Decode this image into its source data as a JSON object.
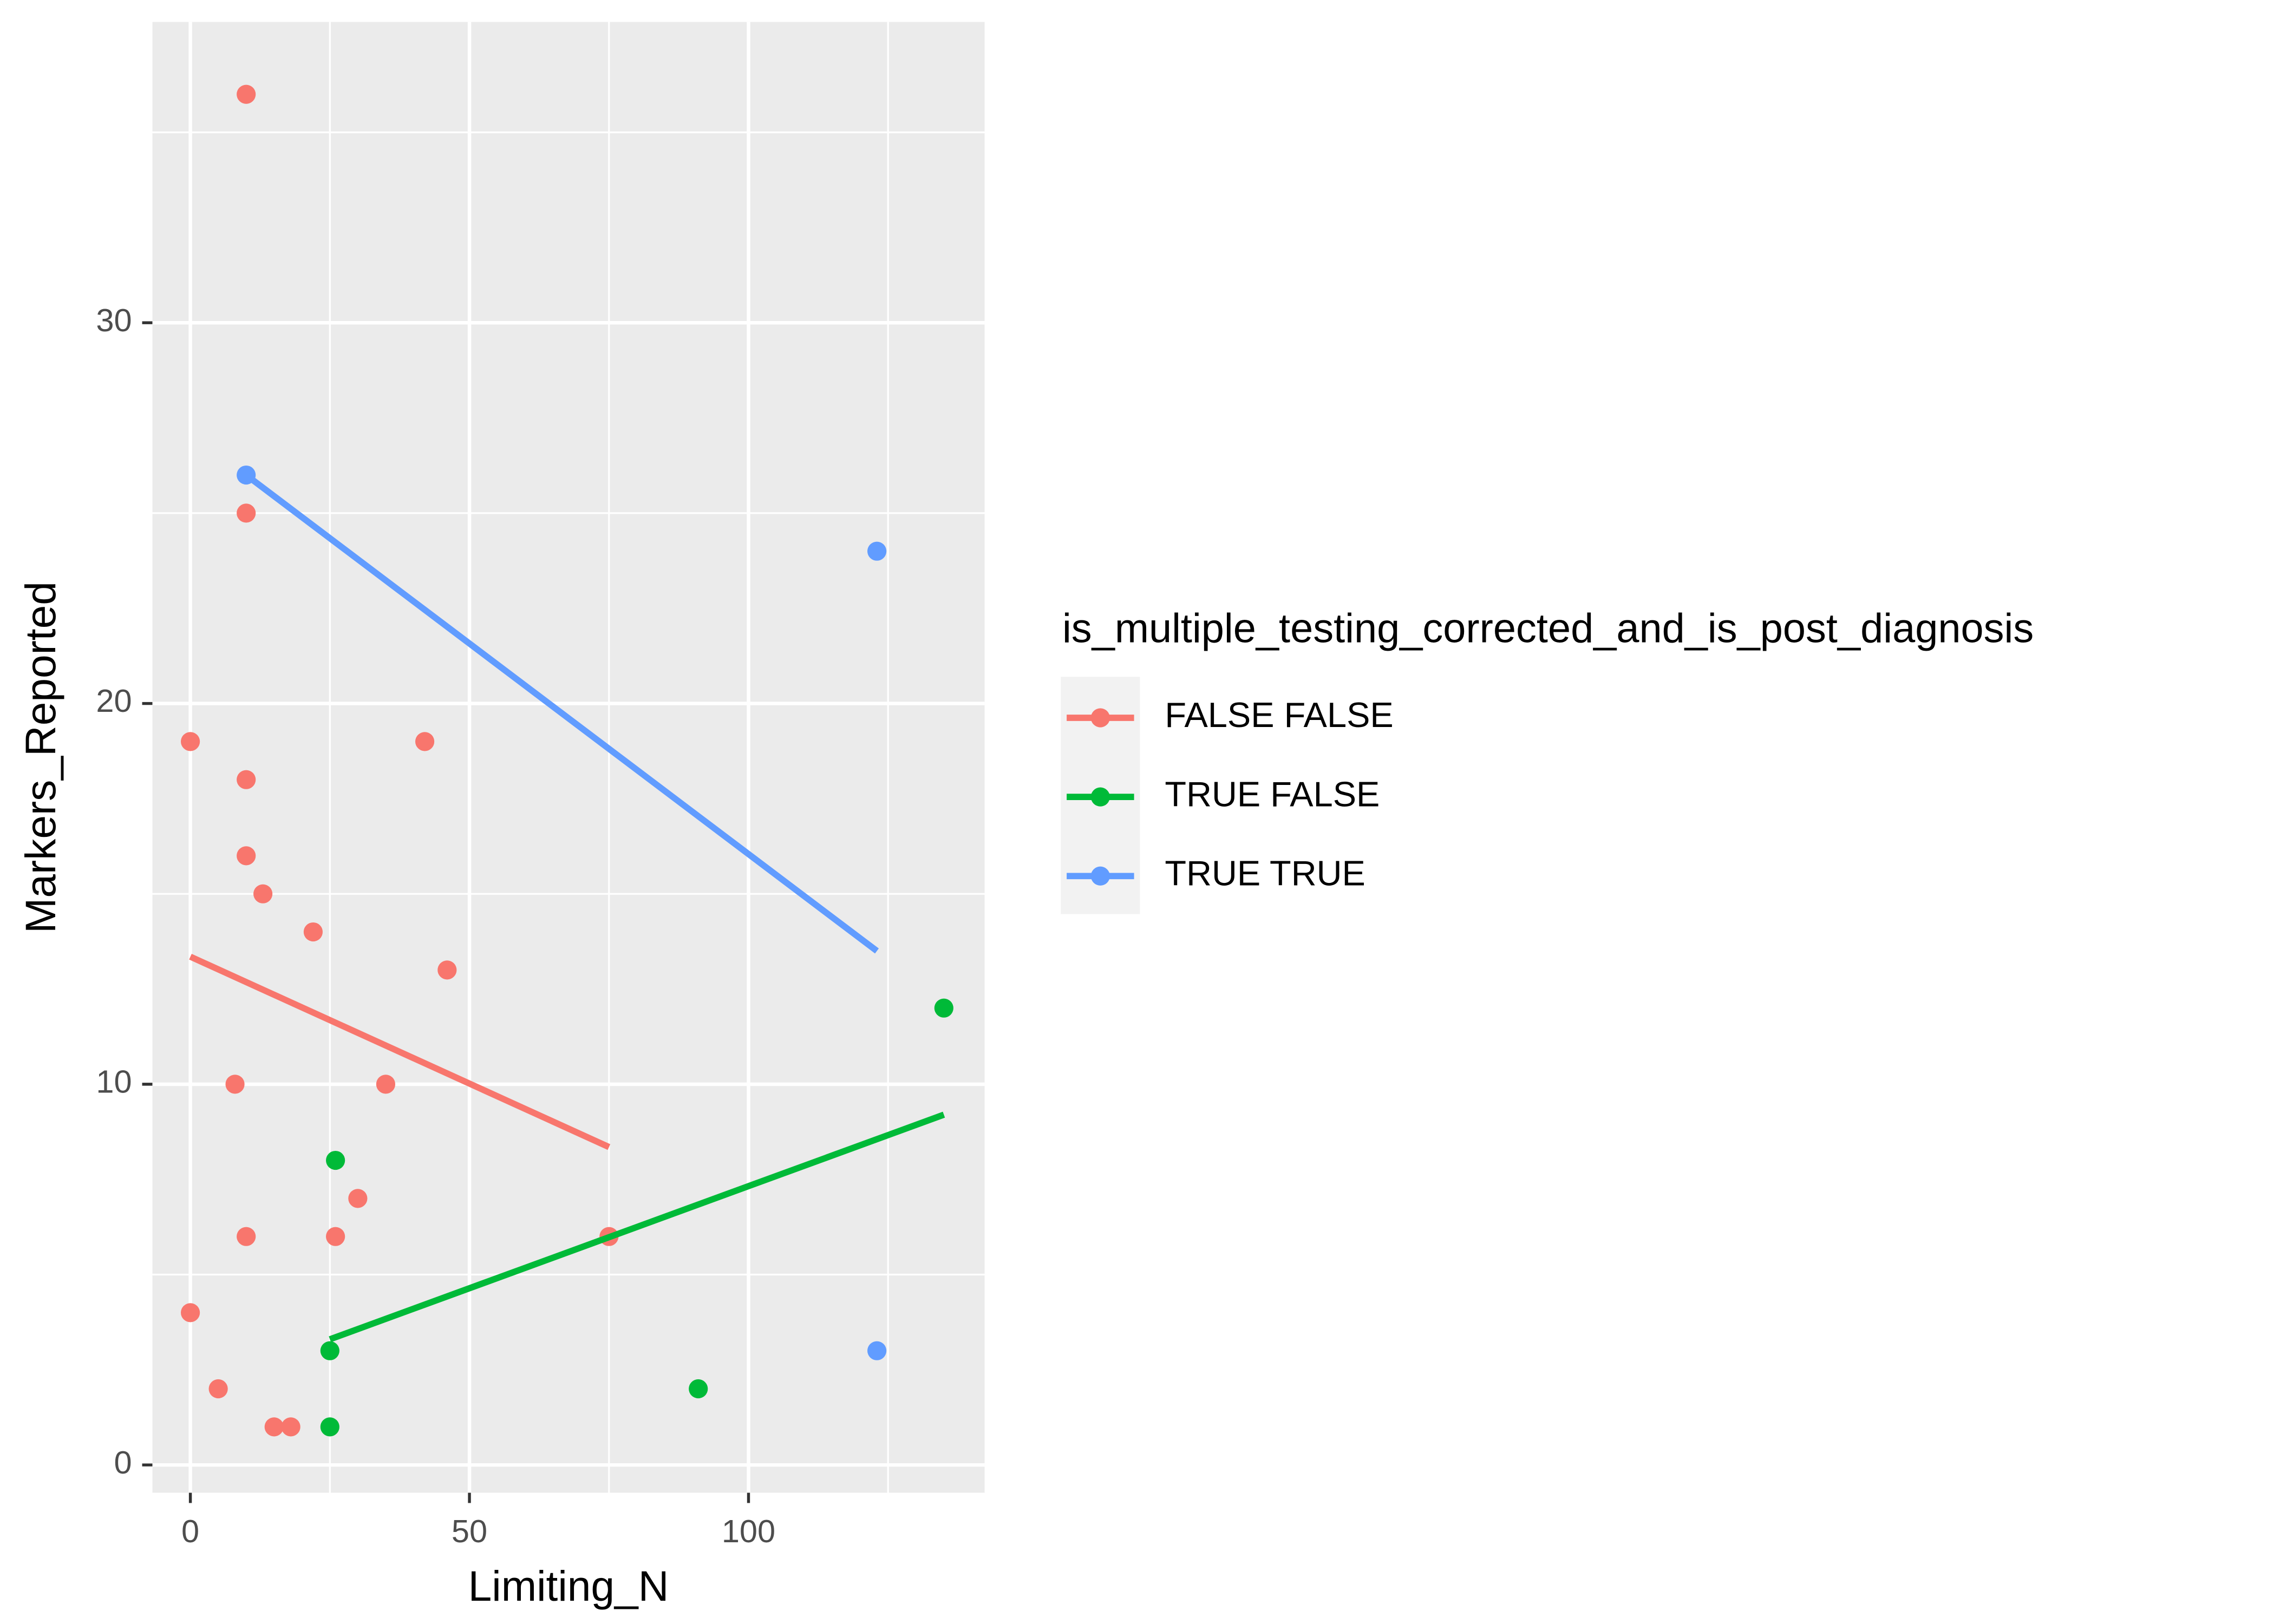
{
  "chart_data": {
    "type": "scatter",
    "x_label": "Limiting_N",
    "y_label": "Markers_Reported",
    "legend_title": "is_multiple_testing_corrected_and_is_post_diagnosis",
    "legend_position": "right",
    "xlim": [
      -6.8,
      142.3
    ],
    "ylim": [
      -0.73,
      37.9
    ],
    "xticks": [
      0,
      50,
      100
    ],
    "yticks": [
      0,
      10,
      20,
      30
    ],
    "xminor": [
      25,
      75,
      125
    ],
    "yminor": [
      5,
      15,
      25,
      35
    ],
    "grid": true,
    "series": [
      {
        "name": "FALSE FALSE",
        "color": "#F8766D",
        "x": [
          10,
          10,
          0,
          10,
          42,
          10,
          13,
          22,
          46,
          8,
          35,
          30,
          10,
          26,
          75,
          0,
          5,
          15,
          18
        ],
        "y": [
          36,
          25,
          19,
          18,
          19,
          16,
          15,
          14,
          13,
          10,
          10,
          7,
          6,
          6,
          6,
          4,
          2,
          1,
          1
        ],
        "fit_x": [
          0,
          75
        ],
        "fit_y": [
          13.35,
          8.35
        ]
      },
      {
        "name": "TRUE FALSE",
        "color": "#00BA38",
        "x": [
          26,
          25,
          25,
          91,
          135
        ],
        "y": [
          8,
          3,
          1,
          2,
          12
        ],
        "fit_x": [
          25,
          135
        ],
        "fit_y": [
          3.3,
          9.2
        ]
      },
      {
        "name": "TRUE TRUE",
        "color": "#619CFF",
        "x": [
          10,
          123,
          123
        ],
        "y": [
          26,
          24,
          3
        ],
        "fit_x": [
          10,
          123
        ],
        "fit_y": [
          26,
          13.5
        ]
      }
    ]
  }
}
